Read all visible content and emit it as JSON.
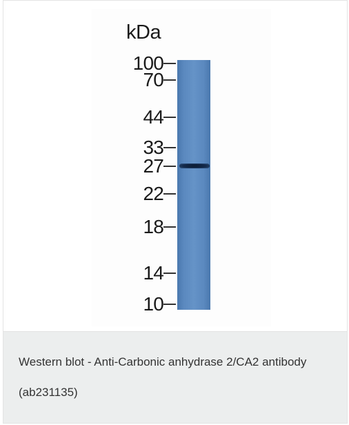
{
  "figure": {
    "unit_label": "kDa",
    "markers": [
      "100",
      "70",
      "44",
      "33",
      "27",
      "22",
      "18",
      "14",
      "10"
    ],
    "lane_color": "#5b89bf",
    "band_color": "#13294a"
  },
  "caption": {
    "text": "Western blot - Anti-Carbonic anhydrase 2/CA2 antibody (ab231135)"
  }
}
